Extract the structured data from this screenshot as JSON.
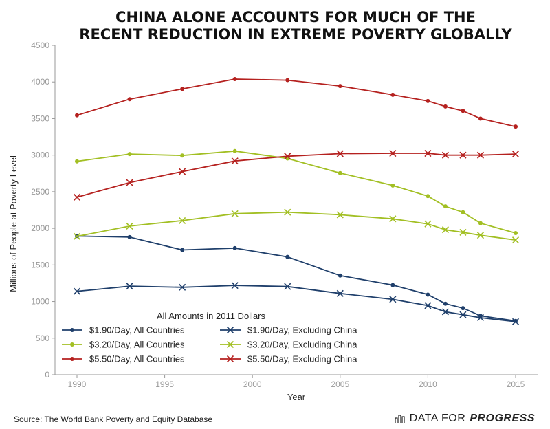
{
  "colors": {
    "dark_blue": "#1f3f6b",
    "green": "#a2bf23",
    "red": "#b5211f",
    "axis": "#999999"
  },
  "chart_data": {
    "type": "line",
    "title_lines": [
      "CHINA ALONE ACCOUNTS FOR MUCH OF THE",
      "RECENT REDUCTION IN EXTREME POVERTY GLOBALLY"
    ],
    "xlabel": "Year",
    "ylabel": "Millions of People at Poverty Level",
    "xlim": [
      1990,
      2015
    ],
    "ylim": [
      0,
      4500
    ],
    "xticks": [
      1990,
      1995,
      2000,
      2005,
      2010,
      2015
    ],
    "yticks": [
      0,
      500,
      1000,
      1500,
      2000,
      2500,
      3000,
      3500,
      4000,
      4500
    ],
    "legend_title": "All Amounts in 2011 Dollars",
    "x": [
      1990,
      1993,
      1996,
      1999,
      2002,
      2005,
      2008,
      2010,
      2011,
      2012,
      2013,
      2015
    ],
    "series": [
      {
        "name": "$1.90/Day, All Countries",
        "color": "#1f3f6b",
        "marker": "dot",
        "values": [
          1895,
          1880,
          1705,
          1730,
          1610,
          1355,
          1225,
          1095,
          970,
          910,
          805,
          735
        ]
      },
      {
        "name": "$3.20/Day, All Countries",
        "color": "#a2bf23",
        "marker": "dot",
        "values": [
          2915,
          3015,
          2995,
          3055,
          2955,
          2755,
          2585,
          2440,
          2300,
          2220,
          2070,
          1935
        ]
      },
      {
        "name": "$5.50/Day, All Countries",
        "color": "#b5211f",
        "marker": "dot",
        "values": [
          3545,
          3765,
          3905,
          4040,
          4025,
          3945,
          3825,
          3740,
          3665,
          3605,
          3500,
          3390
        ]
      },
      {
        "name": "$1.90/Day, Excluding China",
        "color": "#1f3f6b",
        "marker": "x",
        "values": [
          1140,
          1210,
          1195,
          1220,
          1205,
          1110,
          1030,
          945,
          860,
          820,
          780,
          725
        ]
      },
      {
        "name": "$3.20/Day, Excluding China",
        "color": "#a2bf23",
        "marker": "x",
        "values": [
          1890,
          2030,
          2105,
          2200,
          2220,
          2185,
          2130,
          2060,
          1980,
          1945,
          1905,
          1840
        ]
      },
      {
        "name": "$5.50/Day, Excluding China",
        "color": "#b5211f",
        "marker": "x",
        "values": [
          2425,
          2625,
          2775,
          2920,
          2985,
          3020,
          3025,
          3025,
          3000,
          3000,
          3000,
          3015
        ]
      }
    ]
  },
  "footer": {
    "source": "Source: The World Bank Poverty and Equity Database",
    "brand_regular": "DATA FOR",
    "brand_bold": "PROGRESS"
  }
}
